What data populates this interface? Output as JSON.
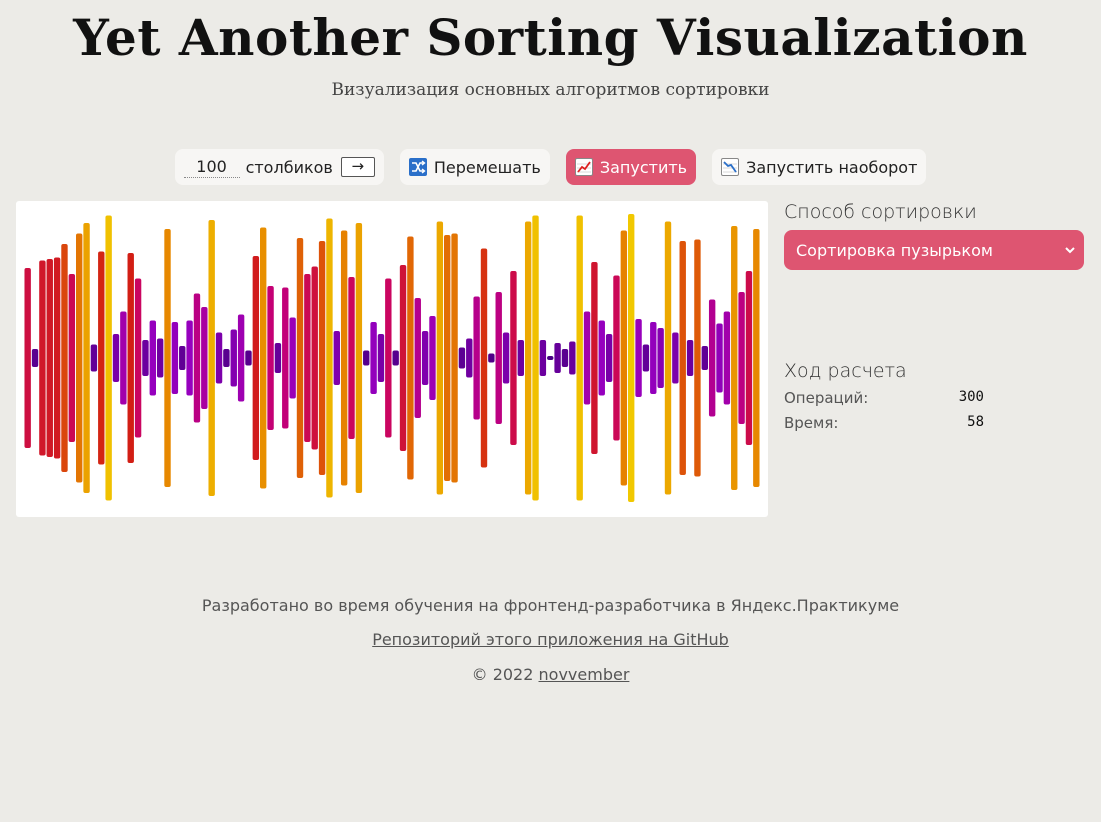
{
  "header": {
    "title": "Yet Another Sorting Visualization",
    "subtitle": "Визуализация основных алгоритмов сортировки"
  },
  "toolbar": {
    "count_value": "100",
    "count_label": "столбиков",
    "apply_label": "→",
    "shuffle_label": "Перемешать",
    "run_label": "Запустить",
    "run_reverse_label": "Запустить наоборот"
  },
  "sidebar": {
    "method_heading": "Способ сортировки",
    "method_selected": "Сортировка пузырьком",
    "progress_heading": "Ход расчета",
    "operations_label": "Операций:",
    "operations_value": "300",
    "time_label": "Время:",
    "time_value": "58"
  },
  "footer": {
    "dev_text": "Разработано во время обучения на фронтенд-разработчика в Яндекс.Практикуме",
    "repo_link": "Репозиторий этого приложения на GitHub",
    "copyright_prefix": "© 2022",
    "author_link": "novvember"
  },
  "colors": {
    "accent": "#de5571",
    "background": "#ecebe7"
  },
  "chart_data": {
    "type": "bar",
    "bar_count": 100,
    "values": [
      60,
      6,
      65,
      66,
      67,
      76,
      56,
      83,
      90,
      9,
      71,
      95,
      16,
      31,
      70,
      53,
      12,
      25,
      13,
      86,
      24,
      8,
      25,
      43,
      34,
      92,
      17,
      6,
      19,
      29,
      5,
      68,
      87,
      48,
      10,
      47,
      27,
      80,
      56,
      61,
      78,
      93,
      18,
      85,
      54,
      90,
      5,
      24,
      16,
      53,
      5,
      62,
      81,
      40,
      18,
      28,
      91,
      82,
      83,
      7,
      13,
      41,
      73,
      3,
      44,
      17,
      58,
      12,
      91,
      95,
      12,
      1,
      10,
      6,
      11,
      95,
      31,
      64,
      25,
      16,
      55,
      85,
      96,
      26,
      9,
      24,
      20,
      91,
      17,
      78,
      12,
      79,
      8,
      39,
      23,
      31,
      88,
      44,
      58,
      86
    ]
  }
}
